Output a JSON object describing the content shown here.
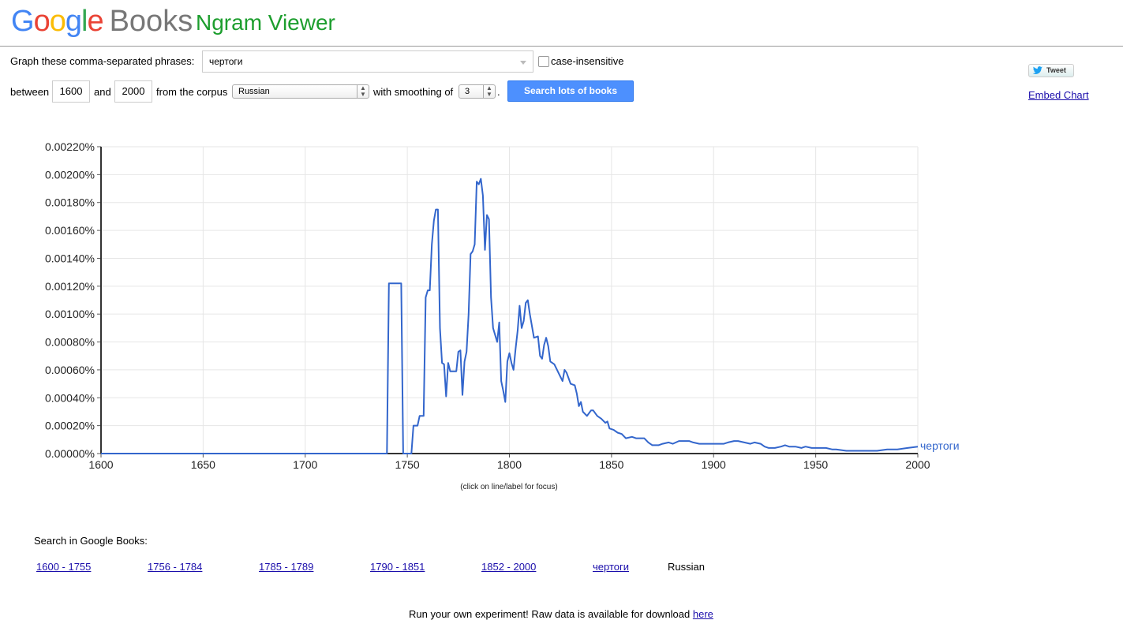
{
  "header": {
    "logo_google": [
      "G",
      "o",
      "o",
      "g",
      "l",
      "e"
    ],
    "logo_books": "Books",
    "title": "Ngram Viewer"
  },
  "form": {
    "phrases_label": "Graph these comma-separated phrases:",
    "phrases_value": "чертоги",
    "case_insensitive_label": "case-insensitive",
    "between_label": "between",
    "start_year": "1600",
    "and_label": "and",
    "end_year": "2000",
    "corpus_label": "from the corpus",
    "corpus_value": "Russian",
    "smoothing_label": "with smoothing of",
    "smoothing_value": "3",
    "period": ".",
    "search_button": "Search lots of books"
  },
  "side": {
    "tweet_label": "Tweet",
    "embed_label": "Embed Chart"
  },
  "chart_hint": "(click on line/label for focus)",
  "search_in": {
    "label": "Search in Google Books:",
    "links": [
      "1600 - 1755",
      "1756 - 1784",
      "1785 - 1789",
      "1790 - 1851",
      "1852 - 2000",
      "чертоги"
    ],
    "corpus": "Russian"
  },
  "footer": {
    "text": "Run your own experiment! Raw data is available for download ",
    "link": "here"
  },
  "chart_data": {
    "type": "line",
    "xlim": [
      1600,
      2000
    ],
    "ylim": [
      0,
      0.0022
    ],
    "x_ticks": [
      1600,
      1650,
      1700,
      1750,
      1800,
      1850,
      1900,
      1950,
      2000
    ],
    "y_ticks": [
      "0.00000%",
      "0.00020%",
      "0.00040%",
      "0.00060%",
      "0.00080%",
      "0.00100%",
      "0.00120%",
      "0.00140%",
      "0.00160%",
      "0.00180%",
      "0.00200%",
      "0.00220%"
    ],
    "grid": true,
    "color": "#3366cc",
    "series": [
      {
        "name": "чертоги",
        "points": [
          [
            1600,
            0
          ],
          [
            1740,
            0
          ],
          [
            1741,
            0.00122
          ],
          [
            1747,
            0.00122
          ],
          [
            1748,
            0
          ],
          [
            1752,
            0
          ],
          [
            1753,
            0.0002
          ],
          [
            1755,
            0.0002
          ],
          [
            1756,
            0.00027
          ],
          [
            1758,
            0.00027
          ],
          [
            1759,
            0.00112
          ],
          [
            1760,
            0.00117
          ],
          [
            1761,
            0.00117
          ],
          [
            1762,
            0.0015
          ],
          [
            1763,
            0.00167
          ],
          [
            1764,
            0.00175
          ],
          [
            1765,
            0.00175
          ],
          [
            1766,
            0.0009
          ],
          [
            1767,
            0.00065
          ],
          [
            1768,
            0.00064
          ],
          [
            1769,
            0.00041
          ],
          [
            1770,
            0.00065
          ],
          [
            1771,
            0.00059
          ],
          [
            1774,
            0.00059
          ],
          [
            1775,
            0.00073
          ],
          [
            1776,
            0.00074
          ],
          [
            1777,
            0.00042
          ],
          [
            1778,
            0.00066
          ],
          [
            1779,
            0.00073
          ],
          [
            1780,
            0.001
          ],
          [
            1781,
            0.00143
          ],
          [
            1782,
            0.00145
          ],
          [
            1783,
            0.0015
          ],
          [
            1784,
            0.00195
          ],
          [
            1785,
            0.00193
          ],
          [
            1786,
            0.00197
          ],
          [
            1787,
            0.00185
          ],
          [
            1788,
            0.00146
          ],
          [
            1789,
            0.00171
          ],
          [
            1790,
            0.00168
          ],
          [
            1791,
            0.00112
          ],
          [
            1792,
            0.0009
          ],
          [
            1793,
            0.00085
          ],
          [
            1794,
            0.0008
          ],
          [
            1795,
            0.00094
          ],
          [
            1796,
            0.00052
          ],
          [
            1797,
            0.00045
          ],
          [
            1798,
            0.00037
          ],
          [
            1799,
            0.00066
          ],
          [
            1800,
            0.00072
          ],
          [
            1801,
            0.00065
          ],
          [
            1802,
            0.0006
          ],
          [
            1803,
            0.00075
          ],
          [
            1804,
            0.00088
          ],
          [
            1805,
            0.00106
          ],
          [
            1806,
            0.0009
          ],
          [
            1807,
            0.00095
          ],
          [
            1808,
            0.00108
          ],
          [
            1809,
            0.0011
          ],
          [
            1810,
            0.001
          ],
          [
            1812,
            0.00083
          ],
          [
            1814,
            0.00084
          ],
          [
            1815,
            0.0007
          ],
          [
            1816,
            0.00068
          ],
          [
            1817,
            0.00078
          ],
          [
            1818,
            0.00083
          ],
          [
            1819,
            0.00077
          ],
          [
            1820,
            0.00066
          ],
          [
            1822,
            0.00064
          ],
          [
            1825,
            0.00055
          ],
          [
            1826,
            0.00052
          ],
          [
            1827,
            0.0006
          ],
          [
            1828,
            0.00058
          ],
          [
            1830,
            0.0005
          ],
          [
            1832,
            0.00049
          ],
          [
            1833,
            0.00043
          ],
          [
            1834,
            0.00034
          ],
          [
            1835,
            0.00037
          ],
          [
            1836,
            0.0003
          ],
          [
            1838,
            0.00027
          ],
          [
            1840,
            0.00031
          ],
          [
            1841,
            0.00031
          ],
          [
            1843,
            0.00027
          ],
          [
            1845,
            0.00025
          ],
          [
            1847,
            0.00022
          ],
          [
            1848,
            0.00023
          ],
          [
            1849,
            0.00018
          ],
          [
            1851,
            0.00017
          ],
          [
            1853,
            0.00015
          ],
          [
            1855,
            0.00014
          ],
          [
            1857,
            0.00011
          ],
          [
            1860,
            0.00012
          ],
          [
            1862,
            0.00011
          ],
          [
            1866,
            0.00011
          ],
          [
            1868,
            8e-05
          ],
          [
            1870,
            6e-05
          ],
          [
            1873,
            6e-05
          ],
          [
            1875,
            7e-05
          ],
          [
            1878,
            8e-05
          ],
          [
            1880,
            7e-05
          ],
          [
            1883,
            9e-05
          ],
          [
            1886,
            9e-05
          ],
          [
            1888,
            9e-05
          ],
          [
            1890,
            8e-05
          ],
          [
            1893,
            7e-05
          ],
          [
            1896,
            7e-05
          ],
          [
            1900,
            7e-05
          ],
          [
            1905,
            7e-05
          ],
          [
            1907,
            8e-05
          ],
          [
            1910,
            9e-05
          ],
          [
            1912,
            9e-05
          ],
          [
            1915,
            8e-05
          ],
          [
            1918,
            7e-05
          ],
          [
            1920,
            8e-05
          ],
          [
            1923,
            7e-05
          ],
          [
            1925,
            5e-05
          ],
          [
            1927,
            4e-05
          ],
          [
            1930,
            4e-05
          ],
          [
            1933,
            5e-05
          ],
          [
            1935,
            6e-05
          ],
          [
            1937,
            5e-05
          ],
          [
            1940,
            5e-05
          ],
          [
            1943,
            4e-05
          ],
          [
            1945,
            5e-05
          ],
          [
            1948,
            4e-05
          ],
          [
            1950,
            4e-05
          ],
          [
            1955,
            4e-05
          ],
          [
            1958,
            3e-05
          ],
          [
            1960,
            3e-05
          ],
          [
            1965,
            2e-05
          ],
          [
            1970,
            2e-05
          ],
          [
            1975,
            2e-05
          ],
          [
            1980,
            2e-05
          ],
          [
            1985,
            3e-05
          ],
          [
            1990,
            3e-05
          ],
          [
            1995,
            4e-05
          ],
          [
            2000,
            5e-05
          ]
        ]
      }
    ]
  }
}
